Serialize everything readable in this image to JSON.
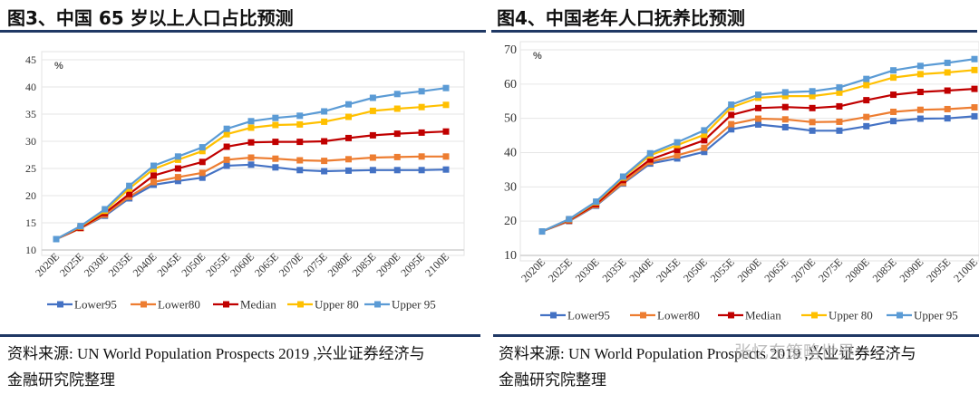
{
  "panels": [
    {
      "title": "图3、中国 65 岁以上人口占比预测",
      "source_line1": "资料来源: UN World Population Prospects 2019 ,兴业证券经济与",
      "source_line2": "金融研究院整理"
    },
    {
      "title": "图4、中国老年人口抚养比预测",
      "source_line1": "资料来源: UN World Population Prospects 2019 ,兴业证券经济与",
      "source_line2": "金融研究院整理"
    }
  ],
  "watermark": "张忆东策略世界",
  "series_colors": {
    "Lower95": "#4472c4",
    "Lower80": "#ed7d31",
    "Median": "#c00000",
    "Upper 80": "#ffc000",
    "Upper 95": "#5b9bd5"
  },
  "chart_data": [
    {
      "type": "line",
      "title": "图3、中国 65 岁以上人口占比预测",
      "unit_label": "%",
      "xlabel": "",
      "ylabel": "%",
      "ylim": [
        10,
        45
      ],
      "yticks": [
        10,
        15,
        20,
        25,
        30,
        35,
        40,
        45
      ],
      "grid": true,
      "legend": "bottom",
      "x": [
        "2020E",
        "2025E",
        "2030E",
        "2035E",
        "2040E",
        "2045E",
        "2050E",
        "2055E",
        "2060E",
        "2065E",
        "2070E",
        "2075E",
        "2080E",
        "2085E",
        "2090E",
        "2095E",
        "2100E"
      ],
      "series": [
        {
          "name": "Lower95",
          "values": [
            12,
            14,
            16.3,
            19.5,
            22,
            22.7,
            23.3,
            25.5,
            25.7,
            25.2,
            24.7,
            24.5,
            24.6,
            24.7,
            24.7,
            24.7,
            24.8
          ]
        },
        {
          "name": "Lower80",
          "values": [
            12,
            14,
            16.5,
            19.8,
            22.5,
            23.4,
            24.2,
            26.6,
            27,
            26.8,
            26.5,
            26.4,
            26.7,
            27,
            27.1,
            27.2,
            27.2
          ]
        },
        {
          "name": "Median",
          "values": [
            12,
            14.1,
            16.8,
            20.3,
            23.7,
            25,
            26.2,
            29,
            29.8,
            29.9,
            29.9,
            30,
            30.6,
            31.1,
            31.4,
            31.6,
            31.8
          ]
        },
        {
          "name": "Upper 80",
          "values": [
            12,
            14.3,
            17.2,
            21.3,
            24.9,
            26.6,
            28.2,
            31.3,
            32.5,
            33,
            33.1,
            33.6,
            34.5,
            35.6,
            36,
            36.3,
            36.7
          ]
        },
        {
          "name": "Upper 95",
          "values": [
            12,
            14.4,
            17.5,
            21.8,
            25.5,
            27.2,
            28.9,
            32.3,
            33.7,
            34.3,
            34.7,
            35.5,
            36.8,
            38,
            38.7,
            39.2,
            39.8
          ]
        }
      ]
    },
    {
      "type": "line",
      "title": "图4、中国老年人口抚养比预测",
      "unit_label": "%",
      "xlabel": "",
      "ylabel": "%",
      "ylim": [
        10,
        70
      ],
      "yticks": [
        10,
        20,
        30,
        40,
        50,
        60,
        70
      ],
      "grid": true,
      "legend": "bottom",
      "x": [
        "2020E",
        "2025E",
        "2030E",
        "2035E",
        "2040E",
        "2045E",
        "2050E",
        "2055E",
        "2060E",
        "2065E",
        "2070E",
        "2075E",
        "2080E",
        "2085E",
        "2090E",
        "2095E",
        "2100E"
      ],
      "series": [
        {
          "name": "Lower95",
          "values": [
            17,
            20,
            24.5,
            31,
            36.8,
            38.3,
            40.2,
            46.8,
            48.2,
            47.4,
            46.4,
            46.4,
            47.7,
            49.2,
            49.9,
            50,
            50.6
          ]
        },
        {
          "name": "Lower80",
          "values": [
            17,
            20.1,
            24.7,
            31.2,
            37.3,
            39.2,
            41.4,
            48.3,
            49.9,
            49.7,
            48.9,
            49,
            50.4,
            51.9,
            52.5,
            52.7,
            53.2
          ]
        },
        {
          "name": "Median",
          "values": [
            17,
            20.3,
            25,
            32,
            38,
            40.8,
            43.6,
            51,
            53,
            53.3,
            53,
            53.5,
            55.3,
            56.9,
            57.7,
            58.1,
            58.6
          ]
        },
        {
          "name": "Upper 80",
          "values": [
            17,
            20.5,
            25.5,
            32.7,
            39.2,
            42.2,
            45.2,
            53.2,
            56,
            56.5,
            56.5,
            57.5,
            59.7,
            61.9,
            62.9,
            63.4,
            64.1
          ]
        },
        {
          "name": "Upper 95",
          "values": [
            17,
            20.6,
            25.7,
            33,
            39.8,
            43,
            46.5,
            54,
            56.9,
            57.6,
            57.9,
            59,
            61.5,
            64,
            65.3,
            66.2,
            67.3
          ]
        }
      ]
    }
  ]
}
